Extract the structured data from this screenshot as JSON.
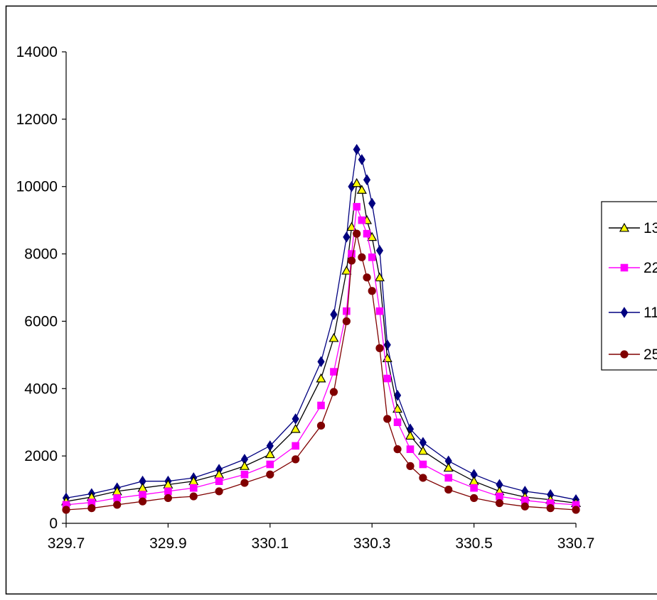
{
  "chart_data": {
    "type": "line",
    "title": "",
    "xlabel": "",
    "ylabel": "",
    "xlim": [
      329.7,
      330.7
    ],
    "ylim": [
      0,
      14000
    ],
    "x_ticks": [
      "329.7",
      "329.9",
      "330.1",
      "330.3",
      "330.5",
      "330.7"
    ],
    "y_ticks": [
      "0",
      "2000",
      "4000",
      "6000",
      "8000",
      "10000",
      "12000",
      "14000"
    ],
    "grid": false,
    "legend_position": "right",
    "series": [
      {
        "name": "13",
        "color": "#000000",
        "marker": "triangle",
        "marker_fill": "#ffff00",
        "x": [
          329.7,
          329.75,
          329.8,
          329.85,
          329.9,
          329.95,
          330.0,
          330.05,
          330.1,
          330.15,
          330.2,
          330.225,
          330.25,
          330.26,
          330.27,
          330.28,
          330.29,
          330.3,
          330.315,
          330.33,
          330.35,
          330.375,
          330.4,
          330.45,
          330.5,
          330.55,
          330.6,
          330.65,
          330.7
        ],
        "y": [
          650,
          780,
          950,
          1050,
          1150,
          1250,
          1450,
          1700,
          2050,
          2800,
          4300,
          5500,
          7500,
          8800,
          10100,
          9900,
          9000,
          8500,
          7300,
          4900,
          3400,
          2600,
          2150,
          1650,
          1250,
          950,
          780,
          700,
          600
        ]
      },
      {
        "name": "22",
        "color": "#ff00ff",
        "marker": "square",
        "marker_fill": "#ff00ff",
        "x": [
          329.7,
          329.75,
          329.8,
          329.85,
          329.9,
          329.95,
          330.0,
          330.05,
          330.1,
          330.15,
          330.2,
          330.225,
          330.25,
          330.26,
          330.27,
          330.28,
          330.29,
          330.3,
          330.315,
          330.33,
          330.35,
          330.375,
          330.4,
          330.45,
          330.5,
          330.55,
          330.6,
          330.65,
          330.7
        ],
        "y": [
          550,
          620,
          750,
          850,
          950,
          1050,
          1250,
          1450,
          1750,
          2300,
          3500,
          4500,
          6300,
          8000,
          9400,
          9000,
          8600,
          7900,
          6300,
          4300,
          3000,
          2200,
          1750,
          1350,
          1050,
          800,
          680,
          600,
          550
        ]
      },
      {
        "name": "11",
        "color": "#000080",
        "marker": "diamond",
        "marker_fill": "#000080",
        "x": [
          329.7,
          329.75,
          329.8,
          329.85,
          329.9,
          329.95,
          330.0,
          330.05,
          330.1,
          330.15,
          330.2,
          330.225,
          330.25,
          330.26,
          330.27,
          330.28,
          330.29,
          330.3,
          330.315,
          330.33,
          330.35,
          330.375,
          330.4,
          330.45,
          330.5,
          330.55,
          330.6,
          330.65,
          330.7
        ],
        "y": [
          750,
          880,
          1050,
          1250,
          1250,
          1350,
          1600,
          1900,
          2300,
          3100,
          4800,
          6200,
          8500,
          10000,
          11100,
          10800,
          10200,
          9500,
          8100,
          5300,
          3800,
          2800,
          2400,
          1850,
          1450,
          1150,
          950,
          850,
          700
        ]
      },
      {
        "name": "25",
        "color": "#800000",
        "marker": "circle",
        "marker_fill": "#800000",
        "x": [
          329.7,
          329.75,
          329.8,
          329.85,
          329.9,
          329.95,
          330.0,
          330.05,
          330.1,
          330.15,
          330.2,
          330.225,
          330.25,
          330.26,
          330.27,
          330.28,
          330.29,
          330.3,
          330.315,
          330.33,
          330.35,
          330.375,
          330.4,
          330.45,
          330.5,
          330.55,
          330.6,
          330.65,
          330.7
        ],
        "y": [
          400,
          450,
          550,
          650,
          750,
          800,
          950,
          1200,
          1450,
          1900,
          2900,
          3900,
          6000,
          7800,
          8600,
          7900,
          7300,
          6900,
          5200,
          3100,
          2200,
          1700,
          1350,
          1000,
          750,
          600,
          500,
          450,
          400
        ]
      }
    ]
  }
}
